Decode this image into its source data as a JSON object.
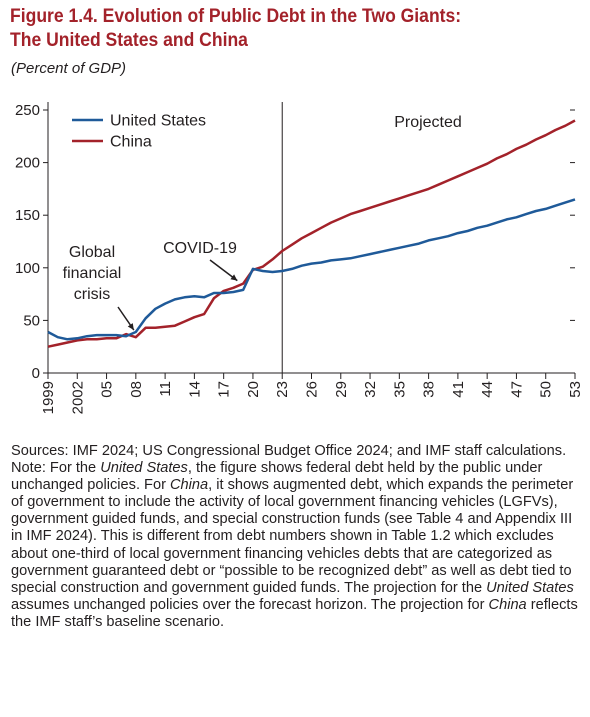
{
  "figure": {
    "title_line1": "Figure 1.4. Evolution of Public Debt in the Two Giants:",
    "title_line2": "The United States and China",
    "subtitle": "(Percent of GDP)"
  },
  "chart_data": {
    "type": "line",
    "ylim": [
      0,
      250
    ],
    "yticks": [
      0,
      50,
      100,
      150,
      200,
      250
    ],
    "xlim": [
      1999,
      2053
    ],
    "xtick_years": [
      1999,
      2002,
      2005,
      2008,
      2011,
      2014,
      2017,
      2020,
      2023,
      2026,
      2029,
      2032,
      2035,
      2038,
      2041,
      2044,
      2047,
      2050,
      2053
    ],
    "xtick_labels": [
      "1999",
      "2002",
      "05",
      "08",
      "11",
      "14",
      "17",
      "20",
      "23",
      "26",
      "29",
      "32",
      "35",
      "38",
      "41",
      "44",
      "47",
      "50",
      "53"
    ],
    "projection_start": 2023,
    "projection_label": "Projected",
    "legend_position": "top-left",
    "series": [
      {
        "name": "United States",
        "color": "#1f5a99",
        "x": [
          1999,
          2000,
          2001,
          2002,
          2003,
          2004,
          2005,
          2006,
          2007,
          2008,
          2009,
          2010,
          2011,
          2012,
          2013,
          2014,
          2015,
          2016,
          2017,
          2018,
          2019,
          2020,
          2021,
          2022,
          2023,
          2024,
          2025,
          2026,
          2027,
          2028,
          2029,
          2030,
          2031,
          2032,
          2033,
          2034,
          2035,
          2036,
          2037,
          2038,
          2039,
          2040,
          2041,
          2042,
          2043,
          2044,
          2045,
          2046,
          2047,
          2048,
          2049,
          2050,
          2051,
          2052,
          2053
        ],
        "values": [
          39,
          34,
          32,
          33,
          35,
          36,
          36,
          36,
          35,
          39,
          52,
          61,
          66,
          70,
          72,
          73,
          72,
          76,
          76,
          77,
          79,
          99,
          97,
          96,
          97,
          99,
          102,
          104,
          105,
          107,
          108,
          109,
          111,
          113,
          115,
          117,
          119,
          121,
          123,
          126,
          128,
          130,
          133,
          135,
          138,
          140,
          143,
          146,
          148,
          151,
          154,
          156,
          159,
          162,
          165
        ]
      },
      {
        "name": "China",
        "color": "#a3222a",
        "x": [
          1999,
          2000,
          2001,
          2002,
          2003,
          2004,
          2005,
          2006,
          2007,
          2008,
          2009,
          2010,
          2011,
          2012,
          2013,
          2014,
          2015,
          2016,
          2017,
          2018,
          2019,
          2020,
          2021,
          2022,
          2023,
          2024,
          2025,
          2026,
          2027,
          2028,
          2029,
          2030,
          2031,
          2032,
          2033,
          2034,
          2035,
          2036,
          2037,
          2038,
          2039,
          2040,
          2041,
          2042,
          2043,
          2044,
          2045,
          2046,
          2047,
          2048,
          2049,
          2050,
          2051,
          2052,
          2053
        ],
        "values": [
          25,
          27,
          29,
          31,
          32,
          32,
          33,
          33,
          37,
          34,
          43,
          43,
          44,
          45,
          49,
          53,
          56,
          71,
          78,
          81,
          85,
          98,
          101,
          108,
          116,
          122,
          128,
          133,
          138,
          143,
          147,
          151,
          154,
          157,
          160,
          163,
          166,
          169,
          172,
          175,
          179,
          183,
          187,
          191,
          195,
          199,
          204,
          208,
          213,
          217,
          222,
          226,
          231,
          235,
          240
        ]
      }
    ],
    "annotations": [
      {
        "id": "gfc",
        "lines": [
          "Global",
          "financial",
          "crisis"
        ],
        "arrow_to": [
          2008,
          38
        ]
      },
      {
        "id": "covid",
        "lines": [
          "COVID-19"
        ],
        "arrow_to": [
          2018.5,
          84
        ]
      }
    ]
  },
  "notes": {
    "sources": "Sources: IMF 2024; US Congressional Budget Office 2024; and IMF staff calculations.",
    "note_parts": [
      {
        "t": "Note: For the ",
        "i": false
      },
      {
        "t": "United States",
        "i": true
      },
      {
        "t": ", the figure shows federal debt held by the public under unchanged policies. For ",
        "i": false
      },
      {
        "t": "China",
        "i": true
      },
      {
        "t": ", it shows augmented debt, which expands the perimeter of government to include the activity of local government financing vehicles (LGFVs), government guided funds, and special construction funds (see Table 4 and Appendix III in IMF 2024). This is different from debt numbers shown in Table 1.2 which excludes about one-third of local government financing vehicles debts that are categorized as government guaranteed debt or “possible to be recognized debt” as well as debt tied to special construction and government guided funds. The projection for the ",
        "i": false
      },
      {
        "t": "United States",
        "i": true
      },
      {
        "t": " assumes unchanged policies over the forecast horizon. The projection for ",
        "i": false
      },
      {
        "t": "China",
        "i": true
      },
      {
        "t": " reflects the IMF staff’s baseline scenario.",
        "i": false
      }
    ]
  }
}
